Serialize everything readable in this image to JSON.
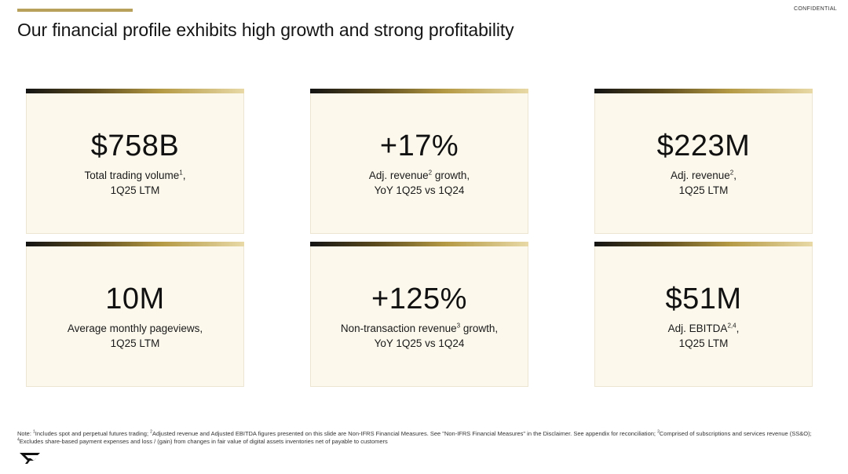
{
  "header": {
    "confidential_label": "CONFIDENTIAL",
    "title": "Our financial profile exhibits high growth and strong profitability"
  },
  "metrics": [
    {
      "value": "$758B",
      "line1_pre": "Total trading volume",
      "line1_sup": "1",
      "line1_post": ",",
      "line2": "1Q25 LTM"
    },
    {
      "value": "+17%",
      "line1_pre": "Adj. revenue",
      "line1_sup": "2",
      "line1_post": " growth,",
      "line2": "YoY 1Q25 vs 1Q24"
    },
    {
      "value": "$223M",
      "line1_pre": "Adj. revenue",
      "line1_sup": "2",
      "line1_post": ",",
      "line2": "1Q25 LTM"
    },
    {
      "value": "10M",
      "line1_pre": "Average monthly pageviews,",
      "line1_sup": "",
      "line1_post": "",
      "line2": "1Q25 LTM"
    },
    {
      "value": "+125%",
      "line1_pre": "Non-transaction revenue",
      "line1_sup": "3",
      "line1_post": " growth,",
      "line2": "YoY 1Q25 vs 1Q24"
    },
    {
      "value": "$51M",
      "line1_pre": "Adj. EBITDA",
      "line1_sup": "2,4",
      "line1_post": ",",
      "line2": "1Q25 LTM"
    }
  ],
  "footnote": {
    "prefix": "Note: ",
    "sup1": "1",
    "text1": "Includes spot and perpetual futures trading; ",
    "sup2": "2",
    "text2": "Adjusted revenue and Adjusted EBITDA figures presented on this slide are Non-IFRS Financial Measures. See \"Non-IFRS Financial Measures\" in the Disclaimer. See appendix for reconciliation; ",
    "sup3": "3",
    "text3": "Comprised of subscriptions and services revenue (SS&O); ",
    "sup4": "4",
    "text4": "Excludes share-based payment expenses and loss / (gain) from changes in fair value of digital assets inventories net of payable to customers"
  },
  "colors": {
    "accent": "#b8a15a",
    "card_background": "#fcf8ec",
    "text": "#111111"
  },
  "icons": [
    "company-logo-icon"
  ]
}
